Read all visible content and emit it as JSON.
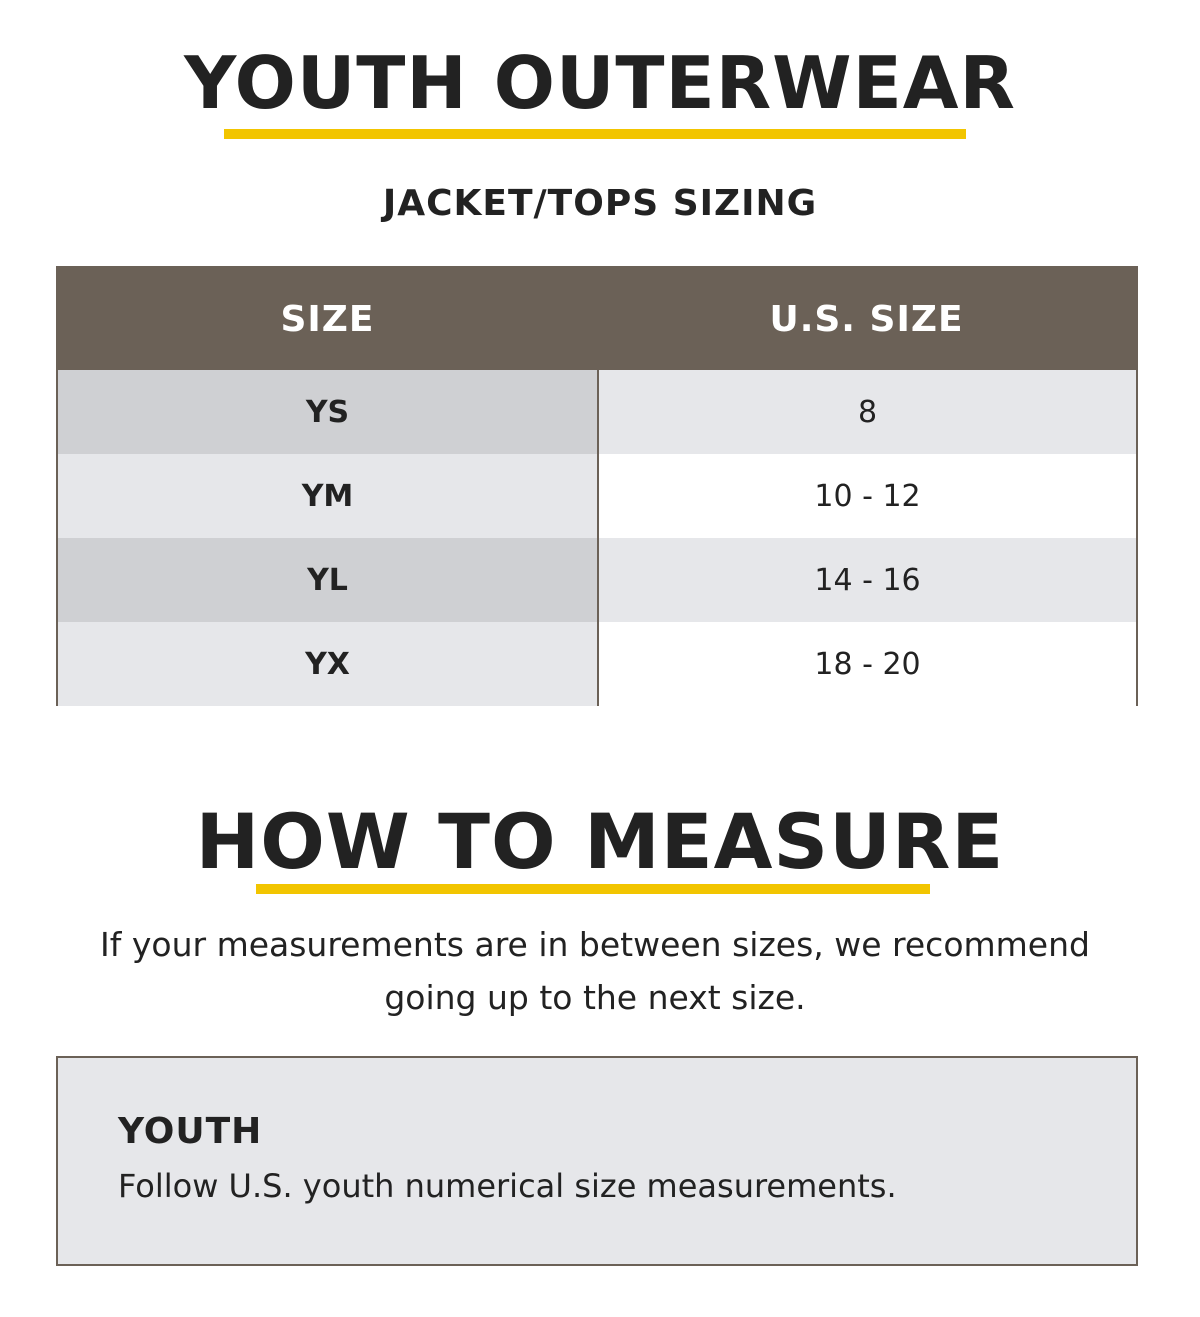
{
  "header": {
    "title": "YOUTH OUTERWEAR",
    "subtitle": "JACKET/TOPS SIZING"
  },
  "colors": {
    "accent": "#f2c500",
    "table_header": "#6b6157",
    "shade_dark": "#cfd0d3",
    "shade_light": "#e6e7ea"
  },
  "size_table": {
    "columns": [
      "SIZE",
      "U.S. SIZE"
    ],
    "rows": [
      {
        "size": "YS",
        "us_size": "8"
      },
      {
        "size": "YM",
        "us_size": "10 - 12"
      },
      {
        "size": "YL",
        "us_size": "14 - 16"
      },
      {
        "size": "YX",
        "us_size": "18 - 20"
      }
    ]
  },
  "measure": {
    "title": "HOW TO MEASURE",
    "note": "If your measurements are in between sizes, we recommend going up to the next size."
  },
  "youth": {
    "heading": "YOUTH",
    "text": "Follow U.S. youth numerical size measurements."
  }
}
